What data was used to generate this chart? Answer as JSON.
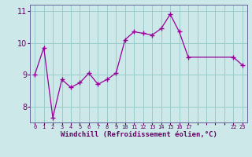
{
  "x": [
    0,
    1,
    2,
    3,
    4,
    5,
    6,
    7,
    8,
    9,
    10,
    11,
    12,
    13,
    14,
    15,
    16,
    17,
    22,
    23
  ],
  "y": [
    9.0,
    9.85,
    7.65,
    8.85,
    8.6,
    8.75,
    9.05,
    8.7,
    8.85,
    9.05,
    10.1,
    10.35,
    10.3,
    10.25,
    10.45,
    10.9,
    10.35,
    9.55,
    9.55,
    9.3
  ],
  "line_color": "#990099",
  "marker_color": "#990099",
  "bg_color": "#cce8e8",
  "grid_color": "#99cccc",
  "xlabel": "Windchill (Refroidissement éolien,°C)",
  "xlabel_color": "#660066",
  "tick_color": "#660066",
  "ylim": [
    7.5,
    11.2
  ],
  "yticks": [
    8,
    9,
    10,
    11
  ],
  "xlim": [
    -0.5,
    23.5
  ],
  "xtick_positions": [
    0,
    1,
    2,
    3,
    4,
    5,
    6,
    7,
    8,
    9,
    10,
    11,
    12,
    13,
    14,
    15,
    16,
    17,
    22,
    23
  ],
  "xtick_labels": [
    "0",
    "1",
    "2",
    "3",
    "4",
    "5",
    "6",
    "7",
    "8",
    "9",
    "10",
    "11",
    "12",
    "13",
    "14",
    "15",
    "16",
    "17",
    "22",
    "23"
  ]
}
